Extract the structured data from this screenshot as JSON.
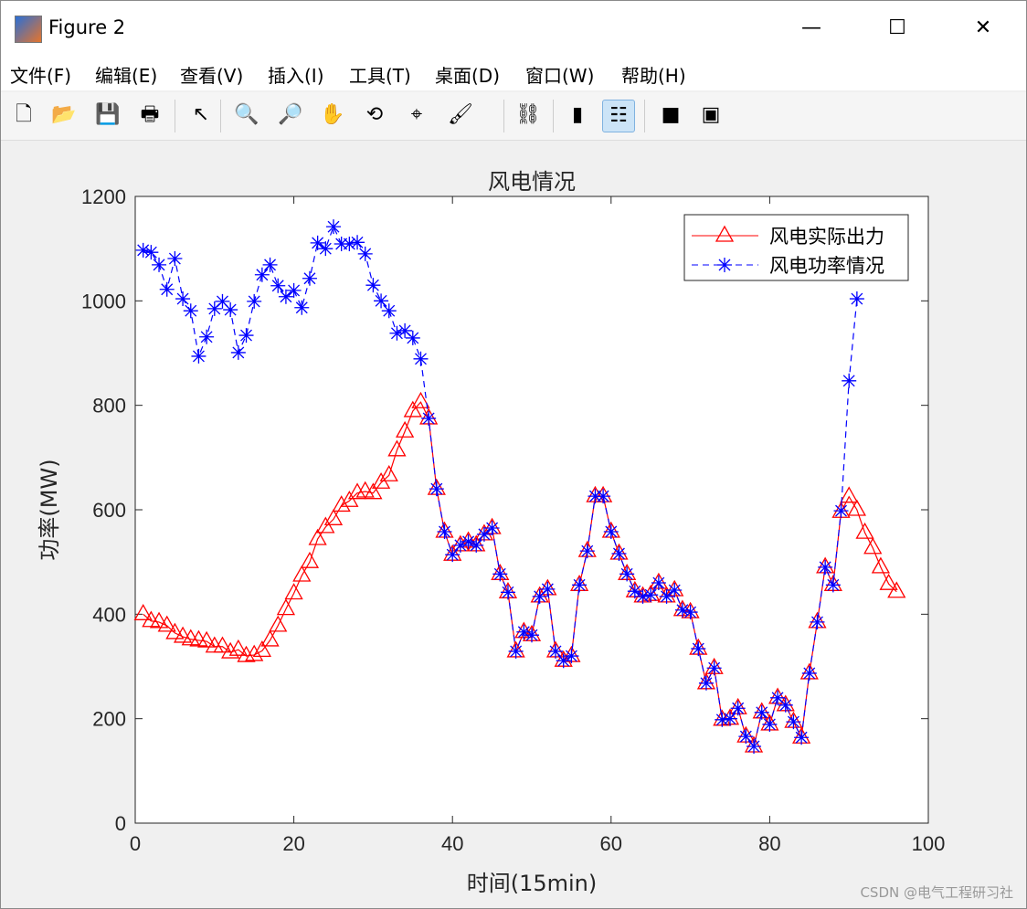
{
  "window": {
    "title": "Figure 2",
    "minimize": "—",
    "maximize": "☐",
    "close": "✕"
  },
  "menu": [
    "文件(F)",
    "编辑(E)",
    "查看(V)",
    "插入(I)",
    "工具(T)",
    "桌面(D)",
    "窗口(W)",
    "帮助(H)"
  ],
  "toolbar": [
    {
      "icon": "new-file-icon",
      "g": "🗋"
    },
    {
      "icon": "open-folder-icon",
      "g": "📂"
    },
    {
      "icon": "save-icon",
      "g": "💾"
    },
    {
      "icon": "print-icon",
      "g": "🖶"
    },
    {
      "icon": "pointer-icon",
      "g": "↖"
    },
    {
      "icon": "zoom-in-icon",
      "g": "🔍"
    },
    {
      "icon": "zoom-out-icon",
      "g": "🔎"
    },
    {
      "icon": "pan-hand-icon",
      "g": "✋"
    },
    {
      "icon": "rotate-3d-icon",
      "g": "⟲"
    },
    {
      "icon": "data-cursor-icon",
      "g": "⌖"
    },
    {
      "icon": "brush-icon",
      "g": "🖌"
    },
    {
      "icon": "link-icon",
      "g": "⛓"
    },
    {
      "icon": "colorbar-icon",
      "g": "▮"
    },
    {
      "icon": "legend-icon",
      "g": "☷"
    },
    {
      "icon": "hide-plot-tools-icon",
      "g": "■"
    },
    {
      "icon": "show-plot-tools-icon",
      "g": "▣"
    }
  ],
  "watermark": "CSDN @电气工程研习社",
  "chart_data": {
    "type": "line",
    "title": "风电情况",
    "xlabel": "时间(15min)",
    "ylabel": "功率(MW)",
    "xlim": [
      0,
      100
    ],
    "ylim": [
      0,
      1200
    ],
    "xticks": [
      "0",
      "20",
      "40",
      "60",
      "80",
      "100"
    ],
    "yticks": [
      "0",
      "200",
      "400",
      "600",
      "800",
      "1000",
      "1200"
    ],
    "grid": false,
    "legend_position": "top-right",
    "series": [
      {
        "name": "风电实际出力",
        "color": "#ff0000",
        "marker": "triangle",
        "line": "solid",
        "x_start": 1,
        "values": [
          400,
          387,
          385,
          378,
          364,
          357,
          352,
          350,
          348,
          338,
          338,
          327,
          332,
          320,
          322,
          330,
          350,
          378,
          410,
          440,
          474,
          500,
          544,
          567,
          582,
          608,
          617,
          632,
          635,
          632,
          652,
          666,
          714,
          750,
          789,
          806,
          775,
          640,
          558,
          514,
          532,
          539,
          532,
          553,
          565,
          477,
          442,
          329,
          366,
          360,
          434,
          448,
          329,
          311,
          320,
          456,
          521,
          626,
          626,
          558,
          516,
          477,
          444,
          434,
          437,
          460,
          434,
          446,
          408,
          404,
          334,
          268,
          297,
          198,
          200,
          220,
          166,
          147,
          212,
          189,
          240,
          226,
          194,
          164,
          287,
          385,
          490,
          456,
          596,
          625,
          600,
          556,
          527,
          490,
          458,
          443
        ]
      },
      {
        "name": "风电功率情况",
        "color": "#0000ff",
        "marker": "asterisk",
        "line": "dashed",
        "x_start": 1,
        "values": [
          1097,
          1093,
          1069,
          1022,
          1081,
          1004,
          981,
          894,
          931,
          985,
          999,
          983,
          901,
          934,
          999,
          1050,
          1069,
          1029,
          1008,
          1020,
          987,
          1043,
          1111,
          1100,
          1142,
          1109,
          1109,
          1112,
          1090,
          1030,
          1000,
          981,
          938,
          943,
          929,
          889,
          775,
          640,
          558,
          514,
          532,
          539,
          532,
          553,
          565,
          477,
          442,
          329,
          366,
          360,
          434,
          448,
          329,
          311,
          320,
          456,
          521,
          626,
          626,
          558,
          516,
          477,
          444,
          434,
          437,
          460,
          434,
          446,
          408,
          404,
          334,
          268,
          297,
          198,
          200,
          220,
          166,
          147,
          212,
          189,
          240,
          226,
          194,
          164,
          287,
          385,
          490,
          456,
          598,
          847,
          1004
        ]
      }
    ]
  }
}
